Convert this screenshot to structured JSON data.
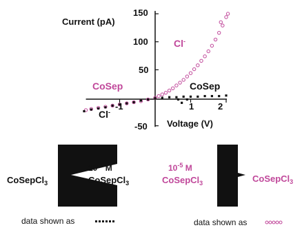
{
  "chart_data": {
    "type": "scatter",
    "title": "",
    "ylabel": "Current (pA)",
    "xlabel": "Voltage (V)",
    "yticks": [
      "150",
      "100",
      "50",
      "-50"
    ],
    "xticks": [
      "-1",
      "1",
      "2"
    ],
    "xlim": [
      -2,
      2.1
    ],
    "ylim": [
      -52,
      155
    ],
    "series": [
      {
        "name": "CoSep",
        "color": "#c0479a",
        "marker": "open-circle",
        "points": [
          [
            -1.95,
            -22
          ],
          [
            -1.8,
            -20
          ],
          [
            -1.6,
            -18
          ],
          [
            -1.4,
            -16
          ],
          [
            -1.2,
            -14
          ],
          [
            -1.0,
            -12
          ],
          [
            -0.8,
            -10
          ],
          [
            -0.6,
            -8
          ],
          [
            -0.4,
            -6
          ],
          [
            -0.2,
            -3
          ],
          [
            0,
            0
          ],
          [
            0.1,
            3
          ],
          [
            0.2,
            6
          ],
          [
            0.3,
            9
          ],
          [
            0.4,
            13
          ],
          [
            0.5,
            17
          ],
          [
            0.6,
            22
          ],
          [
            0.7,
            27
          ],
          [
            0.8,
            32
          ],
          [
            0.9,
            38
          ],
          [
            1.0,
            44
          ],
          [
            1.1,
            51
          ],
          [
            1.2,
            58
          ],
          [
            1.3,
            66
          ],
          [
            1.4,
            74
          ],
          [
            1.5,
            83
          ],
          [
            1.6,
            93
          ],
          [
            1.7,
            104
          ],
          [
            1.8,
            116
          ],
          [
            1.9,
            129
          ],
          [
            2.0,
            144
          ],
          [
            1.85,
            135
          ],
          [
            2.05,
            150
          ]
        ]
      },
      {
        "name": "CoSep",
        "color": "#111111",
        "marker": "filled-square",
        "points": [
          [
            -2.0,
            -24
          ],
          [
            -1.8,
            -21
          ],
          [
            -1.6,
            -19
          ],
          [
            -1.4,
            -17
          ],
          [
            -1.2,
            -14
          ],
          [
            -1.0,
            -12
          ],
          [
            -0.8,
            -10
          ],
          [
            -0.6,
            -8
          ],
          [
            -0.4,
            -5
          ],
          [
            -0.2,
            -3
          ],
          [
            0,
            -1
          ],
          [
            0.2,
            0
          ],
          [
            0.4,
            1
          ],
          [
            0.6,
            1
          ],
          [
            0.8,
            2
          ],
          [
            1.0,
            2
          ],
          [
            1.2,
            2
          ],
          [
            1.4,
            3
          ],
          [
            1.6,
            3
          ],
          [
            1.8,
            3
          ],
          [
            2.0,
            4
          ],
          [
            0.65,
            -3
          ],
          [
            0.75,
            -9
          ],
          [
            0.9,
            -3
          ]
        ]
      }
    ],
    "annotations": {
      "cl_magenta": "Cl",
      "cl_black": "Cl",
      "cl_sup": "-",
      "cosep_magenta": "CoSep",
      "cosep_black": "CoSep"
    }
  },
  "diagrams": {
    "left": {
      "outer_main": "CoSepCl",
      "outer_sub": "3",
      "conc_base": "10",
      "conc_sup": "-5",
      "conc_unit": " M",
      "conc_species": "CoSepCl",
      "conc_sub": "3",
      "caption": "data shown as",
      "color": "#111111"
    },
    "right": {
      "conc_base": "10",
      "conc_sup": "-5",
      "conc_unit": " M",
      "conc_species": "CoSepCl",
      "conc_sub": "3",
      "outer_main": "CoSepCl",
      "outer_sub": "3",
      "caption": "data shown as",
      "color": "#c0479a"
    }
  }
}
